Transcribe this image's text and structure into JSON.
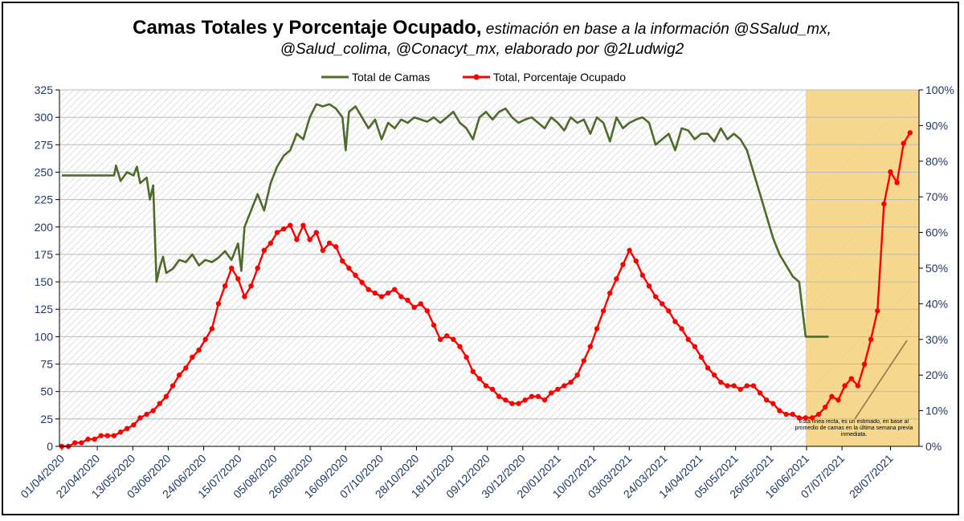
{
  "chart_data": {
    "type": "line",
    "title_bold": "Camas Totales y Porcentaje Ocupado,",
    "title_italic_1": " estimación en base a la información @SSalud_mx,",
    "title_italic_2": "@Salud_colima, @Conacyt_mx, elaborado por @2Ludwig2",
    "legend": [
      "Total de Camas",
      "Total, Porcentaje Ocupado"
    ],
    "y_left_ticks": [
      "0",
      "25",
      "50",
      "75",
      "100",
      "125",
      "150",
      "175",
      "200",
      "225",
      "250",
      "275",
      "300",
      "325"
    ],
    "y_right_ticks": [
      "0%",
      "10%",
      "20%",
      "30%",
      "40%",
      "50%",
      "60%",
      "70%",
      "80%",
      "90%",
      "100%"
    ],
    "ylim_left": [
      0,
      325
    ],
    "ylim_right": [
      0,
      100
    ],
    "x_tick_labels": [
      "01/04/2020",
      "22/04/2020",
      "13/05/2020",
      "03/06/2020",
      "24/06/2020",
      "15/07/2020",
      "05/08/2020",
      "26/08/2020",
      "16/09/2020",
      "07/10/2020",
      "28/10/2020",
      "18/11/2020",
      "09/12/2020",
      "30/12/2020",
      "20/01/2021",
      "10/02/2021",
      "03/03/2021",
      "24/03/2021",
      "14/04/2021",
      "05/05/2021",
      "26/05/2021",
      "16/06/2021",
      "07/07/2021",
      "28/07/2021"
    ],
    "days_total": 125,
    "estimated_from_day": 114,
    "annotation": "Está línea recta, es un estimado, en base al promedio de camas en la última semana previa inmediata.",
    "series": [
      {
        "name": "Total de Camas",
        "color": "#4E6B2A",
        "axis": "left",
        "points": [
          [
            0,
            247
          ],
          [
            8,
            247
          ],
          [
            8.3,
            256
          ],
          [
            9,
            242
          ],
          [
            10,
            250
          ],
          [
            11,
            247
          ],
          [
            11.5,
            255
          ],
          [
            12,
            240
          ],
          [
            13,
            245
          ],
          [
            13.5,
            225
          ],
          [
            14,
            238
          ],
          [
            14.5,
            150
          ],
          [
            15,
            163
          ],
          [
            15.5,
            173
          ],
          [
            16,
            158
          ],
          [
            17,
            162
          ],
          [
            18,
            170
          ],
          [
            19,
            168
          ],
          [
            20,
            175
          ],
          [
            21,
            165
          ],
          [
            22,
            170
          ],
          [
            23,
            168
          ],
          [
            24,
            172
          ],
          [
            25,
            178
          ],
          [
            26,
            170
          ],
          [
            27,
            185
          ],
          [
            27.5,
            160
          ],
          [
            28,
            200
          ],
          [
            29,
            215
          ],
          [
            30,
            230
          ],
          [
            31,
            215
          ],
          [
            32,
            240
          ],
          [
            33,
            255
          ],
          [
            34,
            265
          ],
          [
            35,
            270
          ],
          [
            36,
            285
          ],
          [
            37,
            280
          ],
          [
            38,
            300
          ],
          [
            39,
            312
          ],
          [
            40,
            310
          ],
          [
            41,
            312
          ],
          [
            42,
            308
          ],
          [
            43,
            300
          ],
          [
            43.5,
            270
          ],
          [
            44,
            305
          ],
          [
            45,
            310
          ],
          [
            46,
            300
          ],
          [
            47,
            290
          ],
          [
            48,
            298
          ],
          [
            49,
            280
          ],
          [
            50,
            295
          ],
          [
            51,
            290
          ],
          [
            52,
            298
          ],
          [
            53,
            295
          ],
          [
            54,
            300
          ],
          [
            55,
            298
          ],
          [
            56,
            296
          ],
          [
            57,
            300
          ],
          [
            58,
            295
          ],
          [
            59,
            300
          ],
          [
            60,
            305
          ],
          [
            61,
            295
          ],
          [
            62,
            290
          ],
          [
            63,
            280
          ],
          [
            64,
            300
          ],
          [
            65,
            305
          ],
          [
            66,
            298
          ],
          [
            67,
            305
          ],
          [
            68,
            308
          ],
          [
            69,
            300
          ],
          [
            70,
            295
          ],
          [
            71,
            298
          ],
          [
            72,
            300
          ],
          [
            73,
            295
          ],
          [
            74,
            290
          ],
          [
            75,
            300
          ],
          [
            76,
            295
          ],
          [
            77,
            288
          ],
          [
            78,
            300
          ],
          [
            79,
            295
          ],
          [
            80,
            298
          ],
          [
            81,
            285
          ],
          [
            82,
            300
          ],
          [
            83,
            295
          ],
          [
            84,
            278
          ],
          [
            85,
            300
          ],
          [
            86,
            290
          ],
          [
            87,
            295
          ],
          [
            88,
            298
          ],
          [
            89,
            300
          ],
          [
            90,
            295
          ],
          [
            91,
            275
          ],
          [
            92,
            280
          ],
          [
            93,
            285
          ],
          [
            94,
            270
          ],
          [
            95,
            290
          ],
          [
            96,
            288
          ],
          [
            97,
            280
          ],
          [
            98,
            285
          ],
          [
            99,
            285
          ],
          [
            100,
            278
          ],
          [
            101,
            290
          ],
          [
            102,
            280
          ],
          [
            103,
            285
          ],
          [
            104,
            280
          ],
          [
            105,
            270
          ],
          [
            106,
            250
          ],
          [
            107,
            230
          ],
          [
            108,
            210
          ],
          [
            109,
            190
          ],
          [
            110,
            175
          ],
          [
            111,
            165
          ],
          [
            112,
            155
          ],
          [
            113,
            150
          ],
          [
            114,
            100
          ],
          [
            117.5,
            100
          ]
        ]
      },
      {
        "name": "Total, Porcentaje Ocupado",
        "color": "#FF0000",
        "axis": "right",
        "points": [
          [
            0,
            0
          ],
          [
            1,
            0
          ],
          [
            2,
            1
          ],
          [
            3,
            1
          ],
          [
            4,
            2
          ],
          [
            5,
            2
          ],
          [
            6,
            3
          ],
          [
            7,
            3
          ],
          [
            8,
            3
          ],
          [
            9,
            4
          ],
          [
            10,
            5
          ],
          [
            11,
            6
          ],
          [
            12,
            8
          ],
          [
            13,
            9
          ],
          [
            14,
            10
          ],
          [
            15,
            12
          ],
          [
            16,
            14
          ],
          [
            17,
            17
          ],
          [
            18,
            20
          ],
          [
            19,
            22
          ],
          [
            20,
            25
          ],
          [
            21,
            27
          ],
          [
            22,
            30
          ],
          [
            23,
            33
          ],
          [
            24,
            40
          ],
          [
            25,
            45
          ],
          [
            26,
            50
          ],
          [
            27,
            47
          ],
          [
            28,
            42
          ],
          [
            29,
            45
          ],
          [
            30,
            50
          ],
          [
            31,
            55
          ],
          [
            32,
            57
          ],
          [
            33,
            60
          ],
          [
            34,
            61
          ],
          [
            35,
            62
          ],
          [
            36,
            58
          ],
          [
            37,
            62
          ],
          [
            38,
            58
          ],
          [
            39,
            60
          ],
          [
            40,
            55
          ],
          [
            41,
            57
          ],
          [
            42,
            56
          ],
          [
            43,
            52
          ],
          [
            44,
            50
          ],
          [
            45,
            48
          ],
          [
            46,
            46
          ],
          [
            47,
            44
          ],
          [
            48,
            43
          ],
          [
            49,
            42
          ],
          [
            50,
            43
          ],
          [
            51,
            44
          ],
          [
            52,
            42
          ],
          [
            53,
            41
          ],
          [
            54,
            39
          ],
          [
            55,
            40
          ],
          [
            56,
            38
          ],
          [
            57,
            34
          ],
          [
            58,
            30
          ],
          [
            59,
            31
          ],
          [
            60,
            30
          ],
          [
            61,
            28
          ],
          [
            62,
            25
          ],
          [
            63,
            21
          ],
          [
            64,
            19
          ],
          [
            65,
            17
          ],
          [
            66,
            16
          ],
          [
            67,
            14
          ],
          [
            68,
            13
          ],
          [
            69,
            12
          ],
          [
            70,
            12
          ],
          [
            71,
            13
          ],
          [
            72,
            14
          ],
          [
            73,
            14
          ],
          [
            74,
            13
          ],
          [
            75,
            15
          ],
          [
            76,
            16
          ],
          [
            77,
            17
          ],
          [
            78,
            18
          ],
          [
            79,
            20
          ],
          [
            80,
            24
          ],
          [
            81,
            28
          ],
          [
            82,
            33
          ],
          [
            83,
            38
          ],
          [
            84,
            43
          ],
          [
            85,
            47
          ],
          [
            86,
            51
          ],
          [
            87,
            55
          ],
          [
            88,
            52
          ],
          [
            89,
            48
          ],
          [
            90,
            45
          ],
          [
            91,
            42
          ],
          [
            92,
            40
          ],
          [
            93,
            38
          ],
          [
            94,
            35
          ],
          [
            95,
            33
          ],
          [
            96,
            30
          ],
          [
            97,
            28
          ],
          [
            98,
            25
          ],
          [
            99,
            22
          ],
          [
            100,
            20
          ],
          [
            101,
            18
          ],
          [
            102,
            17
          ],
          [
            103,
            17
          ],
          [
            104,
            16
          ],
          [
            105,
            17
          ],
          [
            106,
            17
          ],
          [
            107,
            15
          ],
          [
            108,
            13
          ],
          [
            109,
            12
          ],
          [
            110,
            10
          ],
          [
            111,
            9
          ],
          [
            112,
            9
          ],
          [
            113,
            8
          ],
          [
            114,
            8
          ],
          [
            115,
            8
          ],
          [
            116,
            9
          ],
          [
            117,
            11
          ],
          [
            118,
            14
          ],
          [
            119,
            13
          ],
          [
            120,
            17
          ],
          [
            121,
            19
          ],
          [
            122,
            17
          ],
          [
            123,
            23
          ],
          [
            124,
            30
          ],
          [
            125,
            38
          ],
          [
            126,
            68
          ],
          [
            127,
            77
          ],
          [
            128,
            74
          ],
          [
            129,
            85
          ],
          [
            130,
            88
          ]
        ]
      }
    ]
  }
}
